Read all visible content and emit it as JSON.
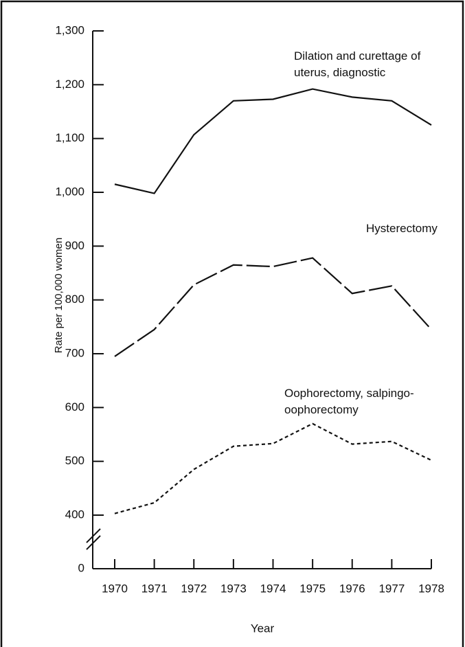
{
  "chart_data": {
    "type": "line",
    "x_label": "Year",
    "y_label": "Rate per 100,000 women",
    "categories": [
      "1970",
      "1971",
      "1972",
      "1973",
      "1974",
      "1975",
      "1976",
      "1977",
      "1978"
    ],
    "series": [
      {
        "name": "Dilation and curettage of uterus, diagnostic",
        "color": "#111111",
        "line_style": "solid",
        "values": [
          1015,
          998,
          1107,
          1170,
          1173,
          1192,
          1177,
          1170,
          1125
        ]
      },
      {
        "name": "Hysterectomy",
        "color": "#111111",
        "line_style": "dashed",
        "values": [
          695,
          745,
          828,
          865,
          862,
          878,
          812,
          826,
          745
        ]
      },
      {
        "name": "Oophorectomy, salpingo-oophorectomy",
        "color": "#111111",
        "line_style": "dotted",
        "values": [
          403,
          423,
          485,
          528,
          533,
          570,
          532,
          537,
          502
        ]
      }
    ],
    "ylim": [
      0,
      1300
    ],
    "yticks": [
      0,
      400,
      500,
      600,
      700,
      800,
      900,
      {
        "value": 1000,
        "label": "1,000"
      },
      {
        "value": 1100,
        "label": "1,100"
      },
      {
        "value": 1200,
        "label": "1,200"
      },
      {
        "value": 1300,
        "label": "1,300"
      }
    ],
    "axis_break": true,
    "grid": false
  }
}
